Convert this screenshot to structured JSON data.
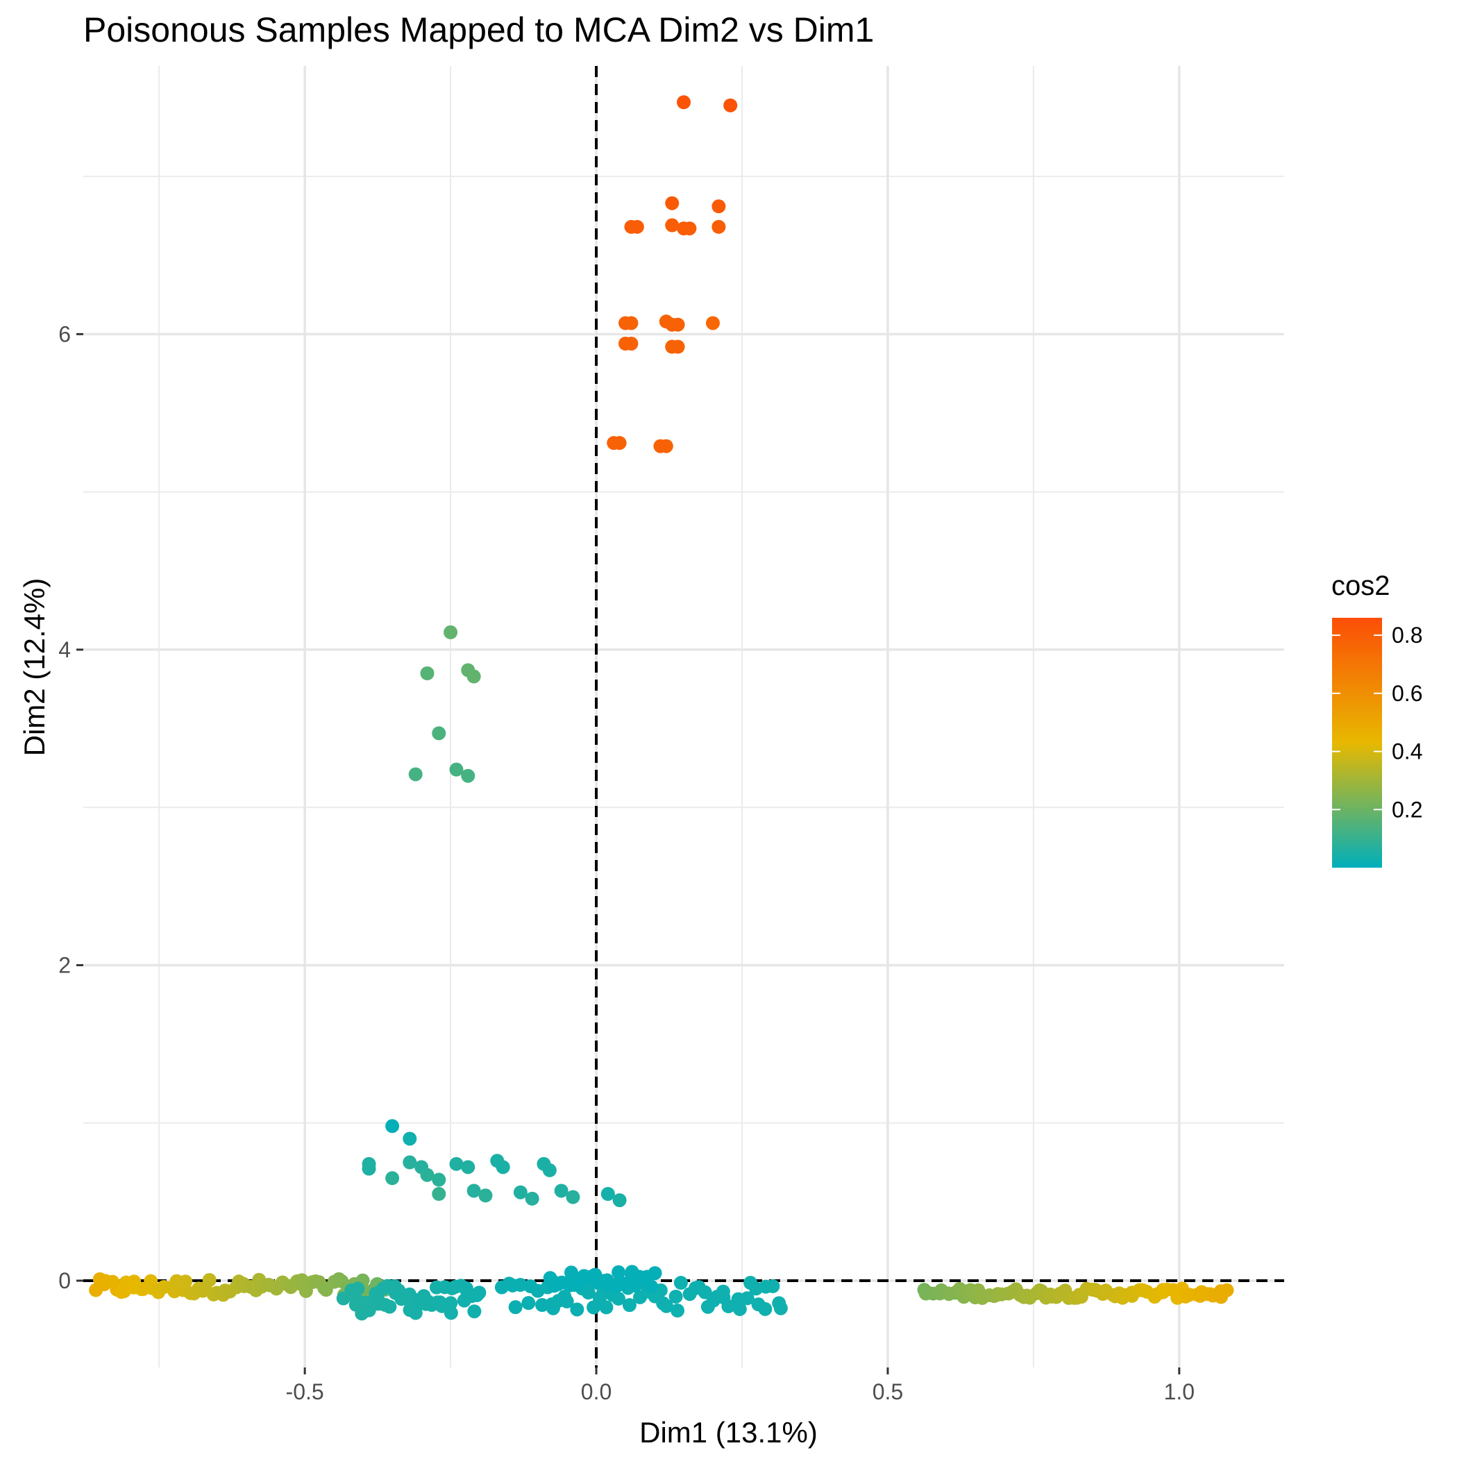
{
  "chart_data": {
    "type": "scatter",
    "title": "Poisonous Samples Mapped to MCA Dim2 vs Dim1",
    "xlabel": "Dim1 (13.1%)",
    "ylabel": "Dim2 (12.4%)",
    "xlim": [
      -0.88,
      1.18
    ],
    "ylim": [
      -0.55,
      7.7
    ],
    "x_ticks": [
      {
        "value": -0.5,
        "label": "-0.5"
      },
      {
        "value": 0.0,
        "label": "0.0"
      },
      {
        "value": 0.5,
        "label": "0.5"
      },
      {
        "value": 1.0,
        "label": "1.0"
      }
    ],
    "y_ticks": [
      {
        "value": 0,
        "label": "0"
      },
      {
        "value": 2,
        "label": "2"
      },
      {
        "value": 4,
        "label": "4"
      },
      {
        "value": 6,
        "label": "6"
      }
    ],
    "grid": true,
    "reference_lines": {
      "x": 0,
      "y": 0,
      "style": "dashed"
    },
    "color_variable": "cos2",
    "color_scale": {
      "min": 0.0,
      "max": 0.86,
      "colors": [
        "#00AFBB",
        "#E7B800",
        "#FC4E07"
      ],
      "ticks": [
        {
          "value": 0.2,
          "label": "0.2"
        },
        {
          "value": 0.4,
          "label": "0.4"
        },
        {
          "value": 0.6,
          "label": "0.6"
        },
        {
          "value": 0.8,
          "label": "0.8"
        }
      ]
    },
    "legend": {
      "title": "cos2",
      "placement": "right"
    },
    "points": [
      [
        0.15,
        7.47,
        0.84
      ],
      [
        0.23,
        7.45,
        0.84
      ],
      [
        0.13,
        6.83,
        0.81
      ],
      [
        0.21,
        6.81,
        0.81
      ],
      [
        0.06,
        6.68,
        0.8
      ],
      [
        0.07,
        6.68,
        0.8
      ],
      [
        0.13,
        6.69,
        0.8
      ],
      [
        0.15,
        6.67,
        0.8
      ],
      [
        0.16,
        6.67,
        0.8
      ],
      [
        0.21,
        6.68,
        0.8
      ],
      [
        0.05,
        6.07,
        0.78
      ],
      [
        0.06,
        6.07,
        0.78
      ],
      [
        0.12,
        6.08,
        0.78
      ],
      [
        0.13,
        6.06,
        0.78
      ],
      [
        0.14,
        6.06,
        0.78
      ],
      [
        0.2,
        6.07,
        0.76
      ],
      [
        0.05,
        5.94,
        0.78
      ],
      [
        0.06,
        5.94,
        0.78
      ],
      [
        0.13,
        5.92,
        0.78
      ],
      [
        0.14,
        5.92,
        0.78
      ],
      [
        0.03,
        5.31,
        0.78
      ],
      [
        0.04,
        5.31,
        0.78
      ],
      [
        0.11,
        5.29,
        0.78
      ],
      [
        0.12,
        5.29,
        0.78
      ],
      [
        -0.25,
        4.11,
        0.18
      ],
      [
        -0.29,
        3.85,
        0.16
      ],
      [
        -0.22,
        3.87,
        0.18
      ],
      [
        -0.21,
        3.83,
        0.18
      ],
      [
        -0.27,
        3.47,
        0.14
      ],
      [
        -0.31,
        3.21,
        0.13
      ],
      [
        -0.24,
        3.24,
        0.13
      ],
      [
        -0.22,
        3.2,
        0.13
      ],
      [
        -0.35,
        0.98,
        0.01
      ],
      [
        -0.32,
        0.9,
        0.03
      ],
      [
        -0.39,
        0.74,
        0.06
      ],
      [
        -0.39,
        0.71,
        0.06
      ],
      [
        -0.32,
        0.75,
        0.07
      ],
      [
        -0.3,
        0.72,
        0.07
      ],
      [
        -0.29,
        0.67,
        0.08
      ],
      [
        -0.35,
        0.65,
        0.08
      ],
      [
        -0.27,
        0.64,
        0.08
      ],
      [
        -0.27,
        0.55,
        0.1
      ],
      [
        -0.24,
        0.74,
        0.06
      ],
      [
        -0.22,
        0.72,
        0.06
      ],
      [
        -0.21,
        0.57,
        0.07
      ],
      [
        -0.19,
        0.54,
        0.08
      ],
      [
        -0.17,
        0.76,
        0.05
      ],
      [
        -0.16,
        0.72,
        0.05
      ],
      [
        -0.09,
        0.74,
        0.05
      ],
      [
        -0.08,
        0.7,
        0.05
      ],
      [
        -0.13,
        0.56,
        0.06
      ],
      [
        -0.11,
        0.52,
        0.07
      ],
      [
        -0.06,
        0.57,
        0.06
      ],
      [
        -0.04,
        0.53,
        0.07
      ],
      [
        0.02,
        0.55,
        0.04
      ],
      [
        0.04,
        0.51,
        0.05
      ]
    ],
    "clusters": [
      {
        "x_min": -0.86,
        "x_max": -0.36,
        "y_center": -0.04,
        "y_spread": 0.05,
        "count": 72,
        "cos2_at_min": 0.47,
        "cos2_at_max": 0.2
      },
      {
        "x_min": -0.43,
        "x_max": -0.2,
        "y_center": -0.12,
        "y_spread": 0.09,
        "count": 48,
        "cos2_at_min": 0.06,
        "cos2_at_max": 0.03
      },
      {
        "x_min": -0.16,
        "x_max": 0.32,
        "y_center": -0.1,
        "y_spread": 0.09,
        "count": 60,
        "cos2_at_min": 0.02,
        "cos2_at_max": 0.03
      },
      {
        "x_min": -0.08,
        "x_max": 0.1,
        "y_center": 0.01,
        "y_spread": 0.05,
        "count": 30,
        "cos2_at_min": 0.01,
        "cos2_at_max": 0.01
      },
      {
        "x_min": 0.56,
        "x_max": 1.08,
        "y_center": -0.08,
        "y_spread": 0.03,
        "count": 80,
        "cos2_at_min": 0.22,
        "cos2_at_max": 0.48
      }
    ]
  }
}
